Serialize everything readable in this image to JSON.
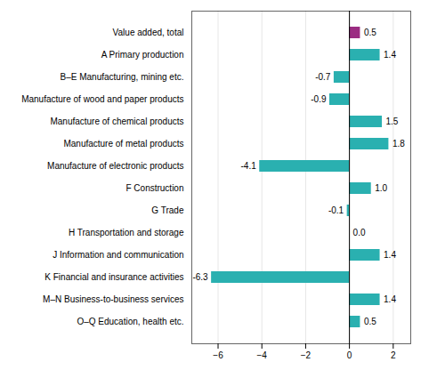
{
  "chart_data": {
    "type": "bar",
    "orientation": "horizontal",
    "categories": [
      "Value added, total",
      "A Primary production",
      "B–E Manufacturing, mining etc.",
      "Manufacture of wood and paper products",
      "Manufacture of chemical products",
      "Manufacture of metal products",
      "Manufacture of electronic products",
      "F Construction",
      "G Trade",
      "H Transportation and storage",
      "J Information and communication",
      "K Financial and insurance activities",
      "M–N Business-to-business services",
      "O–Q Education, health etc."
    ],
    "values": [
      0.5,
      1.4,
      -0.7,
      -0.9,
      1.5,
      1.8,
      -4.1,
      1.0,
      -0.1,
      0.0,
      1.4,
      -6.3,
      1.4,
      0.5
    ],
    "value_labels": [
      "0.5",
      "1.4",
      "-0.7",
      "-0.9",
      "1.5",
      "1.8",
      "-4.1",
      "1.0",
      "-0.1",
      "0.0",
      "1.4",
      "-6.3",
      "1.4",
      "0.5"
    ],
    "colors": [
      "#9b2d82",
      "#2ab0b0",
      "#2ab0b0",
      "#2ab0b0",
      "#2ab0b0",
      "#2ab0b0",
      "#2ab0b0",
      "#2ab0b0",
      "#2ab0b0",
      "#2ab0b0",
      "#2ab0b0",
      "#2ab0b0",
      "#2ab0b0",
      "#2ab0b0"
    ],
    "xlim": [
      -7.2,
      2.8
    ],
    "xticks": [
      -6,
      -4,
      -2,
      0,
      2
    ],
    "grid": true,
    "data_labels": true
  }
}
